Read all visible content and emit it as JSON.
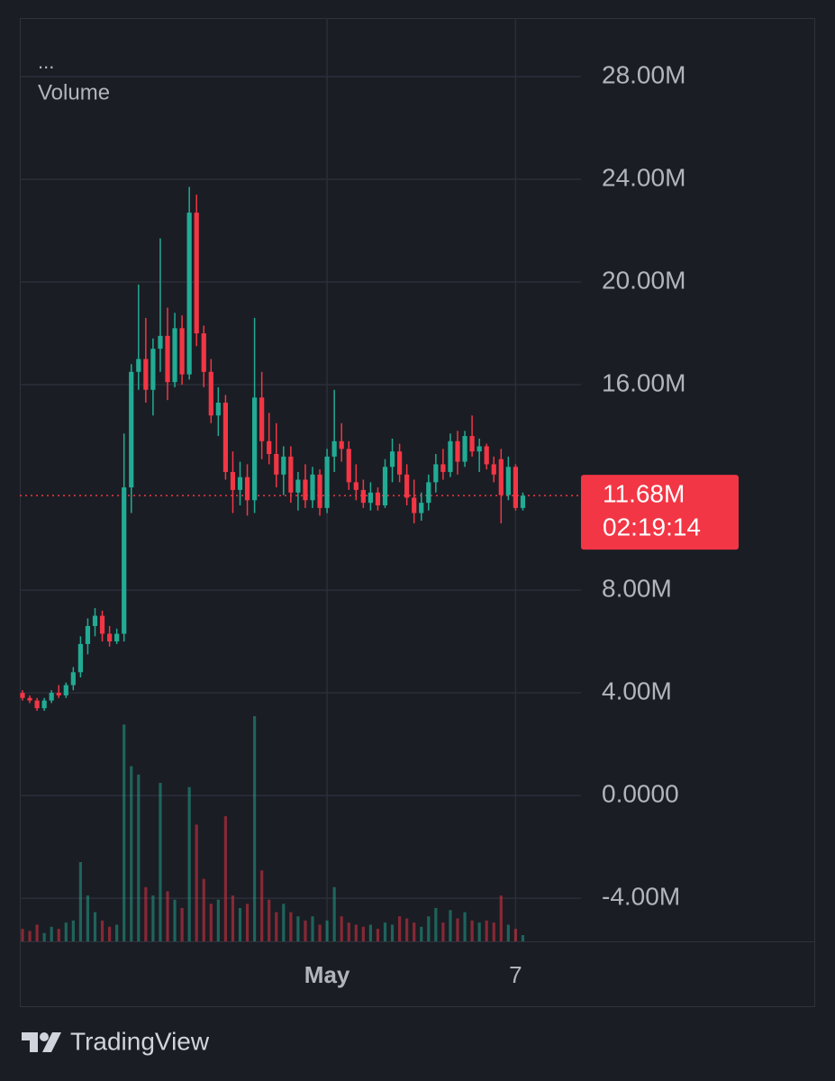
{
  "chart_data": {
    "type": "candlestick",
    "legend_menu": "...",
    "up_color": "#22ab94",
    "down_color": "#f23645",
    "categories": [
      null,
      null,
      null,
      null,
      null,
      null,
      null,
      null,
      null,
      null,
      null,
      null,
      null,
      null,
      null,
      null,
      null,
      null,
      null,
      null,
      null,
      null,
      null,
      null,
      null,
      null,
      null,
      null,
      null,
      null,
      null,
      null,
      null,
      null,
      null,
      null,
      null,
      null,
      null,
      null,
      null,
      null,
      "May",
      null,
      null,
      null,
      null,
      null,
      null,
      null,
      null,
      null,
      null,
      null,
      null,
      null,
      null,
      null,
      null,
      null,
      null,
      null,
      null,
      null,
      null,
      null,
      null,
      null,
      "7",
      null
    ],
    "open": [
      4000000.0,
      3800000.0,
      3700000.0,
      3400000.0,
      3700000.0,
      4000000.0,
      3900000.0,
      4300000.0,
      4800000.0,
      5900000.0,
      6600000.0,
      7000000.0,
      6300000.0,
      6000000.0,
      6300000.0,
      12000000.0,
      16500000.0,
      17000000.0,
      15800000.0,
      17400000.0,
      17900000.0,
      16100000.0,
      18200000.0,
      16400000.0,
      22700000.0,
      18000000.0,
      16500000.0,
      14800000.0,
      15300000.0,
      12600000.0,
      11900000.0,
      12400000.0,
      11500000.0,
      15500000.0,
      13800000.0,
      13300000.0,
      12500000.0,
      13200000.0,
      11800000.0,
      12300000.0,
      11500000.0,
      12500000.0,
      11200000.0,
      13200000.0,
      13800000.0,
      13500000.0,
      12200000.0,
      11900000.0,
      11400000.0,
      11800000.0,
      11300000.0,
      12800000.0,
      13400000.0,
      12500000.0,
      11600000.0,
      11000000.0,
      11400000.0,
      12200000.0,
      12900000.0,
      12600000.0,
      13800000.0,
      13000000.0,
      14000000.0,
      13400000.0,
      13600000.0,
      12900000.0,
      13100000.0,
      11700000.0,
      12800000.0,
      11200000.0
    ],
    "high": [
      4100000.0,
      3900000.0,
      3800000.0,
      3800000.0,
      4100000.0,
      4300000.0,
      4400000.0,
      5000000.0,
      6200000.0,
      6900000.0,
      7300000.0,
      7200000.0,
      6600000.0,
      6500000.0,
      14100000.0,
      16800000.0,
      19900000.0,
      18600000.0,
      17800000.0,
      21700000.0,
      19000000.0,
      18800000.0,
      18700000.0,
      23700000.0,
      23400000.0,
      18300000.0,
      17000000.0,
      15900000.0,
      15600000.0,
      13400000.0,
      13000000.0,
      12900000.0,
      18600000.0,
      16500000.0,
      14900000.0,
      14500000.0,
      13600000.0,
      13600000.0,
      12600000.0,
      12900000.0,
      12800000.0,
      12700000.0,
      13500000.0,
      15800000.0,
      14500000.0,
      13800000.0,
      12900000.0,
      12300000.0,
      12200000.0,
      12000000.0,
      13100000.0,
      13900000.0,
      13700000.0,
      12900000.0,
      12300000.0,
      11800000.0,
      12500000.0,
      13300000.0,
      13500000.0,
      14100000.0,
      14200000.0,
      14200000.0,
      14800000.0,
      13900000.0,
      13700000.0,
      13200000.0,
      13500000.0,
      13200000.0,
      12900000.0,
      11800000.0
    ],
    "low": [
      3700000.0,
      3600000.0,
      3300000.0,
      3300000.0,
      3600000.0,
      3800000.0,
      3800000.0,
      4100000.0,
      4600000.0,
      5500000.0,
      6200000.0,
      6000000.0,
      5800000.0,
      5900000.0,
      6000000.0,
      11000000.0,
      15800000.0,
      15300000.0,
      14800000.0,
      16500000.0,
      15400000.0,
      15900000.0,
      16000000.0,
      16200000.0,
      17500000.0,
      15900000.0,
      14500000.0,
      14000000.0,
      12300000.0,
      11000000.0,
      11300000.0,
      10900000.0,
      11000000.0,
      13100000.0,
      12900000.0,
      12000000.0,
      11700000.0,
      11400000.0,
      11100000.0,
      11200000.0,
      11200000.0,
      10900000.0,
      11000000.0,
      12600000.0,
      13000000.0,
      11900000.0,
      11500000.0,
      11200000.0,
      11100000.0,
      11100000.0,
      11200000.0,
      12200000.0,
      12200000.0,
      11300000.0,
      10600000.0,
      10700000.0,
      11100000.0,
      11800000.0,
      12300000.0,
      12400000.0,
      12500000.0,
      12800000.0,
      13200000.0,
      12600000.0,
      12700000.0,
      12200000.0,
      10600000.0,
      11500000.0,
      11100000.0,
      11100000.0
    ],
    "close": [
      3800000.0,
      3700000.0,
      3400000.0,
      3700000.0,
      4000000.0,
      3900000.0,
      4300000.0,
      4800000.0,
      5900000.0,
      6600000.0,
      7000000.0,
      6300000.0,
      6000000.0,
      6300000.0,
      12000000.0,
      16500000.0,
      17000000.0,
      15800000.0,
      17400000.0,
      17900000.0,
      16100000.0,
      18200000.0,
      16400000.0,
      22700000.0,
      18000000.0,
      16500000.0,
      14800000.0,
      15300000.0,
      12600000.0,
      11900000.0,
      12400000.0,
      11500000.0,
      15500000.0,
      13800000.0,
      13300000.0,
      12500000.0,
      13200000.0,
      11800000.0,
      12300000.0,
      11500000.0,
      12500000.0,
      11200000.0,
      13200000.0,
      13800000.0,
      13500000.0,
      12200000.0,
      11900000.0,
      11400000.0,
      11800000.0,
      11300000.0,
      12800000.0,
      13400000.0,
      12500000.0,
      11600000.0,
      11000000.0,
      11400000.0,
      12200000.0,
      12900000.0,
      12600000.0,
      13800000.0,
      13000000.0,
      14000000.0,
      13400000.0,
      13600000.0,
      12900000.0,
      12500000.0,
      11700000.0,
      12800000.0,
      11200000.0,
      11680000.0
    ],
    "volume": {
      "name": "Volume",
      "values": [
        30,
        25,
        40,
        20,
        35,
        30,
        45,
        50,
        190,
        110,
        70,
        50,
        35,
        40,
        520,
        420,
        400,
        130,
        110,
        380,
        120,
        100,
        80,
        370,
        280,
        150,
        90,
        100,
        300,
        110,
        80,
        90,
        540,
        170,
        100,
        70,
        90,
        70,
        60,
        50,
        60,
        40,
        50,
        130,
        60,
        45,
        40,
        35,
        40,
        30,
        45,
        40,
        60,
        55,
        45,
        35,
        60,
        80,
        45,
        75,
        55,
        70,
        50,
        45,
        50,
        45,
        110,
        40,
        30,
        15
      ]
    },
    "ylim": [
      -5680000.0,
      30280000.0
    ],
    "yticks": [
      {
        "value": 28000000.0,
        "label": "28.00M"
      },
      {
        "value": 24000000.0,
        "label": "24.00M"
      },
      {
        "value": 20000000.0,
        "label": "20.00M"
      },
      {
        "value": 16000000.0,
        "label": "16.00M"
      },
      {
        "value": 8000000.0,
        "label": "8.00M"
      },
      {
        "value": 4000000.0,
        "label": "4.00M"
      },
      {
        "value": 0,
        "label": "0.0000"
      },
      {
        "value": -4000000.0,
        "label": "-4.00M"
      }
    ],
    "grid": true,
    "last_price": {
      "value": 11680000.0,
      "label": "11.68M"
    },
    "countdown": "02:19:14"
  },
  "footer": {
    "brand": "TradingView"
  }
}
